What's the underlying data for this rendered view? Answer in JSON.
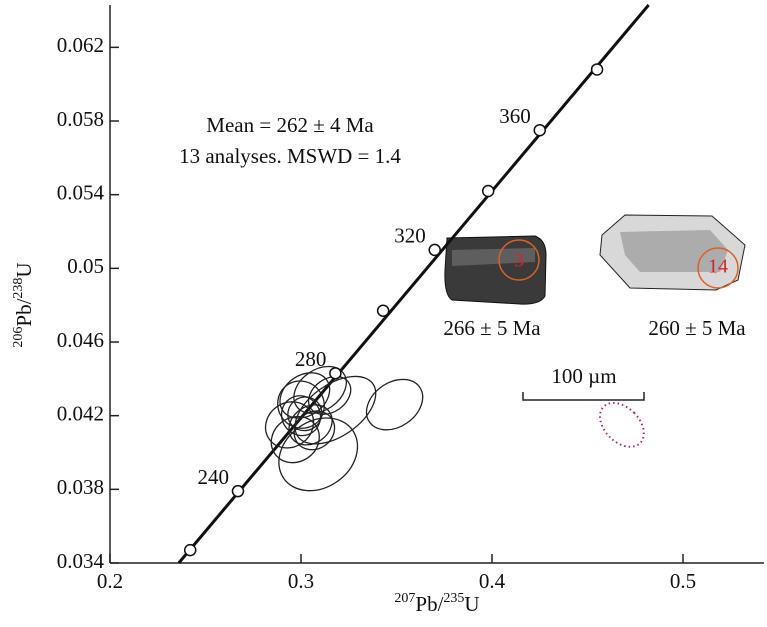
{
  "chart_data": {
    "type": "concordia",
    "xlim": [
      0.2,
      0.5424
    ],
    "ylim": [
      0.034,
      0.0643
    ],
    "xticks": [
      0.2,
      0.3,
      0.4,
      0.5
    ],
    "yticks": [
      0.034,
      0.038,
      0.042,
      0.046,
      0.05,
      0.054,
      0.058,
      0.062
    ],
    "xlabel": [
      {
        "text": "207",
        "sup": true
      },
      {
        "text": "Pb/",
        "sup": false
      },
      {
        "text": "235",
        "sup": true
      },
      {
        "text": "U",
        "sup": false
      }
    ],
    "ylabel": [
      {
        "text": "206",
        "sup": true
      },
      {
        "text": "Pb/",
        "sup": false
      },
      {
        "text": "238",
        "sup": true
      },
      {
        "text": "U",
        "sup": false
      }
    ],
    "concordia_line": {
      "color": "#111",
      "x": [
        0.236,
        0.482
      ],
      "y": [
        0.034,
        0.0643
      ]
    },
    "concordia_points": {
      "x": [
        0.242,
        0.267,
        0.318,
        0.343,
        0.37,
        0.398,
        0.425,
        0.455
      ],
      "y": [
        0.0347,
        0.0379,
        0.0443,
        0.0477,
        0.051,
        0.0542,
        0.0575,
        0.0608
      ],
      "labels": [
        null,
        "240",
        "280",
        null,
        "320",
        null,
        "360",
        null
      ]
    },
    "ellipse_rotation": -35,
    "ellipse_color": "#222",
    "ellipses": [
      {
        "x": 0.309,
        "y": 0.0399,
        "x_err": 0.022,
        "y_err": 0.0018
      },
      {
        "x": 0.318,
        "y": 0.0423,
        "x_err": 0.024,
        "y_err": 0.0014
      },
      {
        "x": 0.349,
        "y": 0.0426,
        "x_err": 0.016,
        "y_err": 0.0012
      },
      {
        "x": 0.3,
        "y": 0.0426,
        "x_err": 0.012,
        "y_err": 0.0013
      },
      {
        "x": 0.302,
        "y": 0.0431,
        "x_err": 0.014,
        "y_err": 0.0011
      },
      {
        "x": 0.294,
        "y": 0.0415,
        "x_err": 0.013,
        "y_err": 0.0012
      },
      {
        "x": 0.305,
        "y": 0.0415,
        "x_err": 0.012,
        "y_err": 0.001
      },
      {
        "x": 0.3,
        "y": 0.042,
        "x_err": 0.01,
        "y_err": 0.0011
      },
      {
        "x": 0.31,
        "y": 0.0434,
        "x_err": 0.015,
        "y_err": 0.0011
      },
      {
        "x": 0.297,
        "y": 0.0407,
        "x_err": 0.013,
        "y_err": 0.0012
      },
      {
        "x": 0.307,
        "y": 0.0412,
        "x_err": 0.011,
        "y_err": 0.001
      },
      {
        "x": 0.315,
        "y": 0.0431,
        "x_err": 0.012,
        "y_err": 0.0009
      },
      {
        "x": 0.302,
        "y": 0.0421,
        "x_err": 0.009,
        "y_err": 0.0009
      }
    ],
    "reference_ellipse": {
      "x": 0.468,
      "y": 0.0415,
      "x_err": 0.009,
      "y_err": 0.0014,
      "rotation": -45,
      "color": "#a0307f"
    },
    "annotations": [
      "Mean = 262 ± 4 Ma",
      "13 analyses. MSWD = 1.4"
    ],
    "grains": [
      {
        "spot": "3",
        "age": "266 ± 5 Ma"
      },
      {
        "spot": "14",
        "age": "260 ± 5 Ma"
      }
    ],
    "scale_bar": "100 µm"
  }
}
